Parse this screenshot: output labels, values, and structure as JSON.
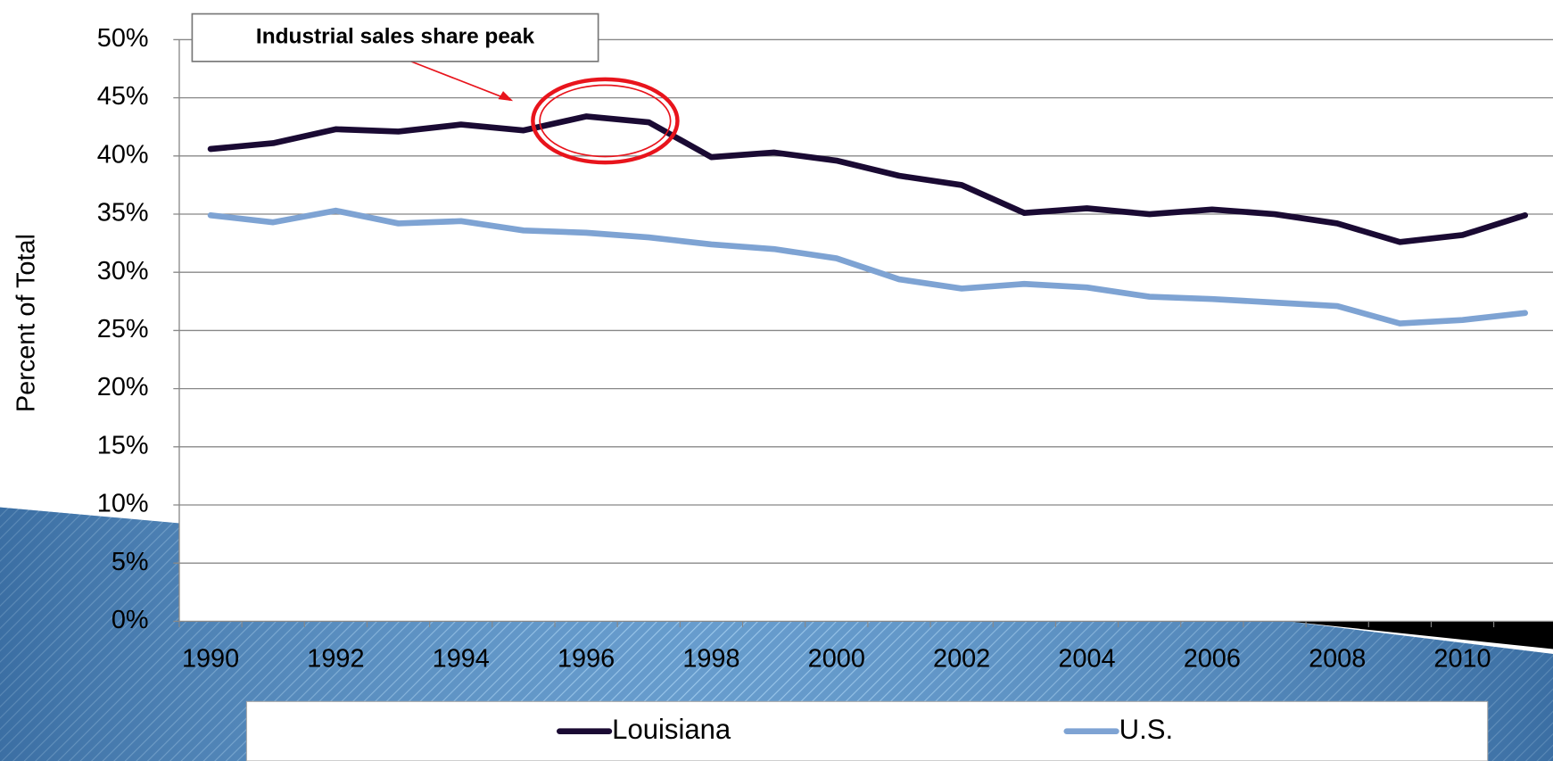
{
  "chart_data": {
    "type": "line",
    "y_label": "Percent of Total",
    "annotation": "Industrial sales share peak",
    "categories": [
      1990,
      null,
      1992,
      null,
      1994,
      null,
      1996,
      null,
      1998,
      null,
      2000,
      null,
      2002,
      null,
      2004,
      null,
      2006,
      null,
      2008,
      null,
      2010,
      null
    ],
    "series": [
      {
        "name": "Louisiana",
        "color": "#1a0a33",
        "values": [
          40.6,
          41.1,
          42.3,
          42.1,
          42.7,
          42.2,
          43.4,
          42.9,
          39.9,
          40.3,
          39.6,
          38.3,
          37.5,
          35.1,
          35.5,
          35.0,
          35.4,
          35.0,
          34.2,
          32.6,
          33.2,
          34.9
        ]
      },
      {
        "name": "U.S.",
        "color": "#7ea3d3",
        "values": [
          34.9,
          34.3,
          35.3,
          34.2,
          34.4,
          33.6,
          33.4,
          33.0,
          32.4,
          32.0,
          31.2,
          29.4,
          28.6,
          29.0,
          28.7,
          27.9,
          27.7,
          27.4,
          27.1,
          25.6,
          25.9,
          26.5
        ]
      }
    ],
    "ylim": [
      0,
      50
    ],
    "yticks": [
      {
        "value": 0,
        "label": "0%"
      },
      {
        "value": 5,
        "label": "5%"
      },
      {
        "value": 10,
        "label": "10%"
      },
      {
        "value": 15,
        "label": "15%"
      },
      {
        "value": 20,
        "label": "20%"
      },
      {
        "value": 25,
        "label": "25%"
      },
      {
        "value": 30,
        "label": "30%"
      },
      {
        "value": 35,
        "label": "35%"
      },
      {
        "value": 40,
        "label": "40%"
      },
      {
        "value": 45,
        "label": "45%"
      },
      {
        "value": 50,
        "label": "50%"
      }
    ],
    "grid": true,
    "legend": "bottom"
  }
}
